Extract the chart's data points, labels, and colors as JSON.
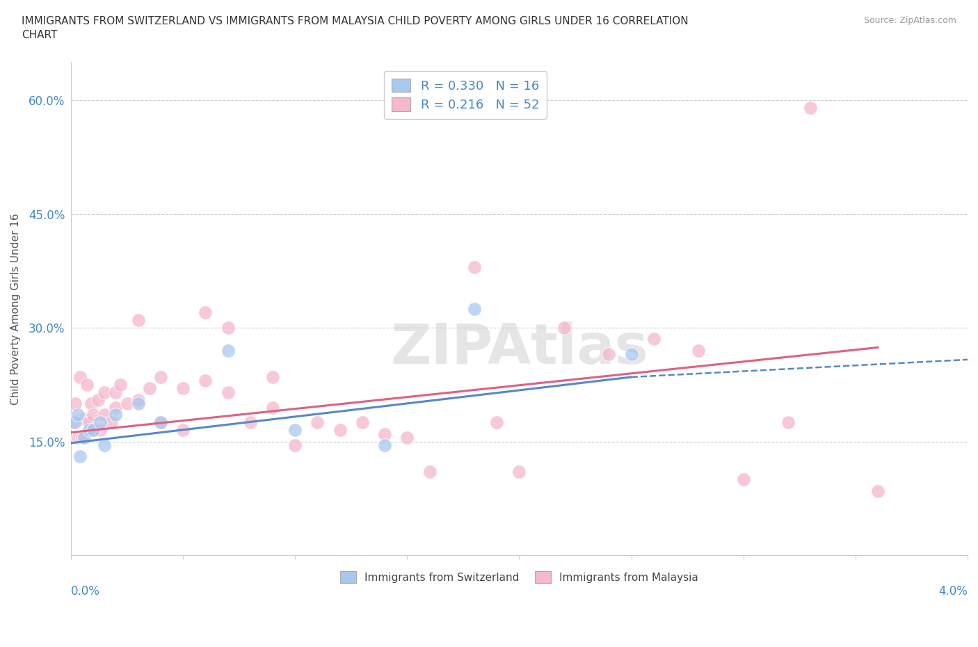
{
  "title": "IMMIGRANTS FROM SWITZERLAND VS IMMIGRANTS FROM MALAYSIA CHILD POVERTY AMONG GIRLS UNDER 16 CORRELATION\nCHART",
  "source": "Source: ZipAtlas.com",
  "ylabel": "Child Poverty Among Girls Under 16",
  "yticks": [
    "15.0%",
    "30.0%",
    "45.0%",
    "60.0%"
  ],
  "ytick_vals": [
    0.15,
    0.3,
    0.45,
    0.6
  ],
  "xlim": [
    0.0,
    0.04
  ],
  "ylim": [
    0.0,
    0.65
  ],
  "legend_r1": "R = 0.330   N = 16",
  "legend_r2": "R = 0.216   N = 52",
  "color_swiss": "#A8C8F0",
  "color_malaysia": "#F5B8CC",
  "trendline_swiss_color": "#5588CC",
  "trendline_malaysia_color": "#E06080",
  "watermark": "ZIPAtlas",
  "swiss_x": [
    0.0002,
    0.0003,
    0.0004,
    0.0006,
    0.0008,
    0.001,
    0.0013,
    0.0015,
    0.002,
    0.003,
    0.004,
    0.007,
    0.01,
    0.014,
    0.018,
    0.025
  ],
  "swiss_y": [
    0.175,
    0.185,
    0.13,
    0.155,
    0.165,
    0.165,
    0.175,
    0.145,
    0.185,
    0.2,
    0.175,
    0.27,
    0.165,
    0.145,
    0.325,
    0.265
  ],
  "mal_x": [
    0.0001,
    0.0002,
    0.0003,
    0.0004,
    0.0005,
    0.0006,
    0.0007,
    0.0008,
    0.0009,
    0.001,
    0.001,
    0.0012,
    0.0013,
    0.0015,
    0.0015,
    0.0018,
    0.002,
    0.002,
    0.0022,
    0.0025,
    0.003,
    0.003,
    0.0035,
    0.004,
    0.004,
    0.005,
    0.005,
    0.006,
    0.006,
    0.007,
    0.007,
    0.008,
    0.009,
    0.009,
    0.01,
    0.011,
    0.012,
    0.013,
    0.014,
    0.015,
    0.016,
    0.018,
    0.019,
    0.02,
    0.022,
    0.024,
    0.026,
    0.028,
    0.03,
    0.032,
    0.033,
    0.036
  ],
  "mal_y": [
    0.175,
    0.2,
    0.155,
    0.235,
    0.155,
    0.18,
    0.225,
    0.175,
    0.2,
    0.165,
    0.185,
    0.205,
    0.165,
    0.215,
    0.185,
    0.175,
    0.215,
    0.195,
    0.225,
    0.2,
    0.31,
    0.205,
    0.22,
    0.235,
    0.175,
    0.165,
    0.22,
    0.32,
    0.23,
    0.3,
    0.215,
    0.175,
    0.235,
    0.195,
    0.145,
    0.175,
    0.165,
    0.175,
    0.16,
    0.155,
    0.11,
    0.38,
    0.175,
    0.11,
    0.3,
    0.265,
    0.285,
    0.27,
    0.1,
    0.175,
    0.59,
    0.085
  ],
  "trendline_swiss_x0": 0.0,
  "trendline_swiss_x1": 0.025,
  "trendline_swiss_y0": 0.148,
  "trendline_swiss_y1": 0.235,
  "trendline_swiss_dash_x0": 0.025,
  "trendline_swiss_dash_x1": 0.04,
  "trendline_swiss_dash_y0": 0.235,
  "trendline_swiss_dash_y1": 0.258,
  "trendline_mal_x0": 0.0,
  "trendline_mal_x1": 0.036,
  "trendline_mal_y0": 0.162,
  "trendline_mal_y1": 0.274
}
